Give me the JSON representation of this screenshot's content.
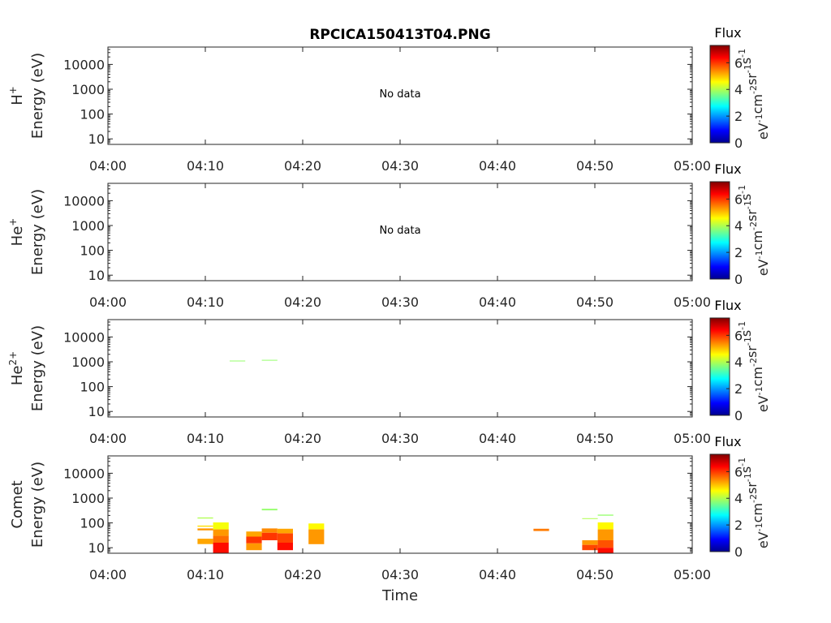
{
  "chart_data": {
    "type": "heatmap",
    "title": "RPCICA150413T04.PNG",
    "xlabel": "Time",
    "x_ticks": [
      "04:00",
      "04:10",
      "04:20",
      "04:30",
      "04:40",
      "04:50",
      "05:00"
    ],
    "xlim_minutes": [
      0,
      60
    ],
    "yscale": "log",
    "ylim": [
      6,
      50000
    ],
    "y_ticks": [
      10,
      100,
      1000,
      10000
    ],
    "y_tick_labels": [
      "10",
      "100",
      "1000",
      "10000"
    ],
    "colorbar": {
      "title": "Flux",
      "label": "eV-1cm-2sr-1s-1",
      "range": [
        0,
        7.3
      ],
      "ticks": [
        0,
        2,
        4,
        6
      ],
      "colormap": "jet"
    },
    "panels": [
      {
        "species": "H",
        "superscript": "+",
        "ylabel": "Energy (eV)",
        "annotation": "No data",
        "cells": []
      },
      {
        "species": "He",
        "superscript": "+",
        "ylabel": "Energy (eV)",
        "annotation": "No data",
        "cells": []
      },
      {
        "species": "He",
        "superscript": "2+",
        "ylabel": "Energy (eV)",
        "annotation": "",
        "cells": [
          {
            "t0": 12.5,
            "t1": 14.1,
            "e0": 1050,
            "e1": 1120,
            "v": 3.8
          },
          {
            "t0": 15.8,
            "t1": 17.4,
            "e0": 1120,
            "e1": 1200,
            "v": 3.8
          }
        ]
      },
      {
        "species": "Comet",
        "superscript": "",
        "ylabel": "Energy (eV)",
        "annotation": "",
        "cells": [
          {
            "t0": 9.2,
            "t1": 10.8,
            "e0": 150,
            "e1": 165,
            "v": 4.0
          },
          {
            "t0": 9.2,
            "t1": 10.8,
            "e0": 70,
            "e1": 78,
            "v": 4.8
          },
          {
            "t0": 9.2,
            "t1": 10.8,
            "e0": 50,
            "e1": 60,
            "v": 5.3
          },
          {
            "t0": 9.2,
            "t1": 10.8,
            "e0": 14,
            "e1": 23,
            "v": 5.2
          },
          {
            "t0": 10.8,
            "t1": 12.4,
            "e0": 55,
            "e1": 105,
            "v": 4.5
          },
          {
            "t0": 10.8,
            "t1": 12.4,
            "e0": 30,
            "e1": 55,
            "v": 5.3
          },
          {
            "t0": 10.8,
            "t1": 12.4,
            "e0": 16,
            "e1": 30,
            "v": 5.6
          },
          {
            "t0": 10.8,
            "t1": 12.4,
            "e0": 6,
            "e1": 16,
            "v": 6.3
          },
          {
            "t0": 14.2,
            "t1": 15.8,
            "e0": 28,
            "e1": 45,
            "v": 5.2
          },
          {
            "t0": 14.2,
            "t1": 15.8,
            "e0": 15,
            "e1": 28,
            "v": 6.0
          },
          {
            "t0": 14.2,
            "t1": 15.8,
            "e0": 8,
            "e1": 15,
            "v": 5.3
          },
          {
            "t0": 15.8,
            "t1": 17.4,
            "e0": 320,
            "e1": 370,
            "v": 3.8
          },
          {
            "t0": 15.8,
            "t1": 17.4,
            "e0": 40,
            "e1": 60,
            "v": 5.4
          },
          {
            "t0": 15.8,
            "t1": 17.4,
            "e0": 20,
            "e1": 40,
            "v": 6.0
          },
          {
            "t0": 17.4,
            "t1": 19.0,
            "e0": 38,
            "e1": 58,
            "v": 5.2
          },
          {
            "t0": 17.4,
            "t1": 19.0,
            "e0": 16,
            "e1": 38,
            "v": 5.9
          },
          {
            "t0": 17.4,
            "t1": 19.0,
            "e0": 8,
            "e1": 16,
            "v": 6.3
          },
          {
            "t0": 20.6,
            "t1": 22.2,
            "e0": 55,
            "e1": 95,
            "v": 4.6
          },
          {
            "t0": 20.6,
            "t1": 22.2,
            "e0": 14,
            "e1": 55,
            "v": 5.3
          },
          {
            "t0": 43.7,
            "t1": 45.3,
            "e0": 47,
            "e1": 58,
            "v": 5.5
          },
          {
            "t0": 48.7,
            "t1": 50.3,
            "e0": 145,
            "e1": 155,
            "v": 4.0
          },
          {
            "t0": 48.7,
            "t1": 50.3,
            "e0": 13,
            "e1": 20,
            "v": 5.3
          },
          {
            "t0": 48.7,
            "t1": 50.3,
            "e0": 8,
            "e1": 13,
            "v": 5.9
          },
          {
            "t0": 50.3,
            "t1": 51.9,
            "e0": 195,
            "e1": 215,
            "v": 3.8
          },
          {
            "t0": 50.3,
            "t1": 51.9,
            "e0": 55,
            "e1": 105,
            "v": 4.6
          },
          {
            "t0": 50.3,
            "t1": 51.9,
            "e0": 20,
            "e1": 55,
            "v": 5.3
          },
          {
            "t0": 50.3,
            "t1": 51.9,
            "e0": 10,
            "e1": 20,
            "v": 5.8
          },
          {
            "t0": 50.3,
            "t1": 51.9,
            "e0": 6,
            "e1": 10,
            "v": 6.3
          }
        ]
      }
    ]
  }
}
